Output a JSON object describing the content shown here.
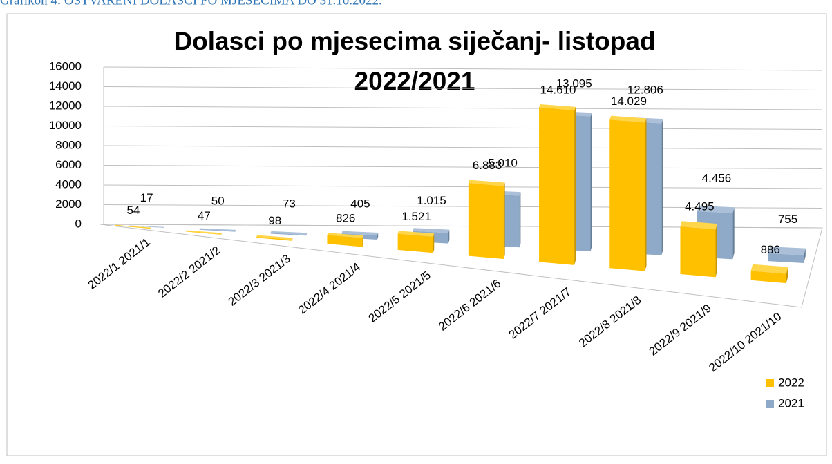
{
  "caption": "Grafikon 4: OSTVARENI DOLASCI PO MJESECIMA DO 31.10.2022.",
  "chart_data": {
    "type": "bar3d",
    "title": [
      "Dolasci po mjesecima siječanj- listopad",
      "2022/2021"
    ],
    "categories": [
      "2022/1 2021/1",
      "2022/2 2021/2",
      "2022/3 2021/3",
      "2022/4 2021/4",
      "2022/5 2021/5",
      "2022/6 2021/6",
      "2022/7 2021/7",
      "2022/8 2021/8",
      "2022/9 2021/9",
      "2022/10 2021/10"
    ],
    "series": [
      {
        "name": "2022",
        "color": "#ffc000",
        "top": "#ffd54a",
        "side": "#c79600",
        "values": [
          54,
          47,
          98,
          826,
          1521,
          6883,
          14610,
          14029,
          4495,
          886
        ],
        "value_labels": [
          "54",
          "47",
          "98",
          "826",
          "1.521",
          "6.883",
          "14.610",
          "14.029",
          "4.495",
          "886"
        ]
      },
      {
        "name": "2021",
        "color": "#8eaac8",
        "top": "#abbfd8",
        "side": "#687f9a",
        "values": [
          17,
          50,
          73,
          405,
          1015,
          5010,
          13095,
          12806,
          4456,
          755
        ],
        "value_labels": [
          "17",
          "50",
          "73",
          "405",
          "1.015",
          "5.010",
          "13.095",
          "12.806",
          "4.456",
          "755"
        ]
      }
    ],
    "ylim": [
      0,
      16000
    ],
    "yticks": [
      0,
      2000,
      4000,
      6000,
      8000,
      10000,
      12000,
      14000,
      16000
    ],
    "grid": true,
    "legend": "bottom-right"
  }
}
